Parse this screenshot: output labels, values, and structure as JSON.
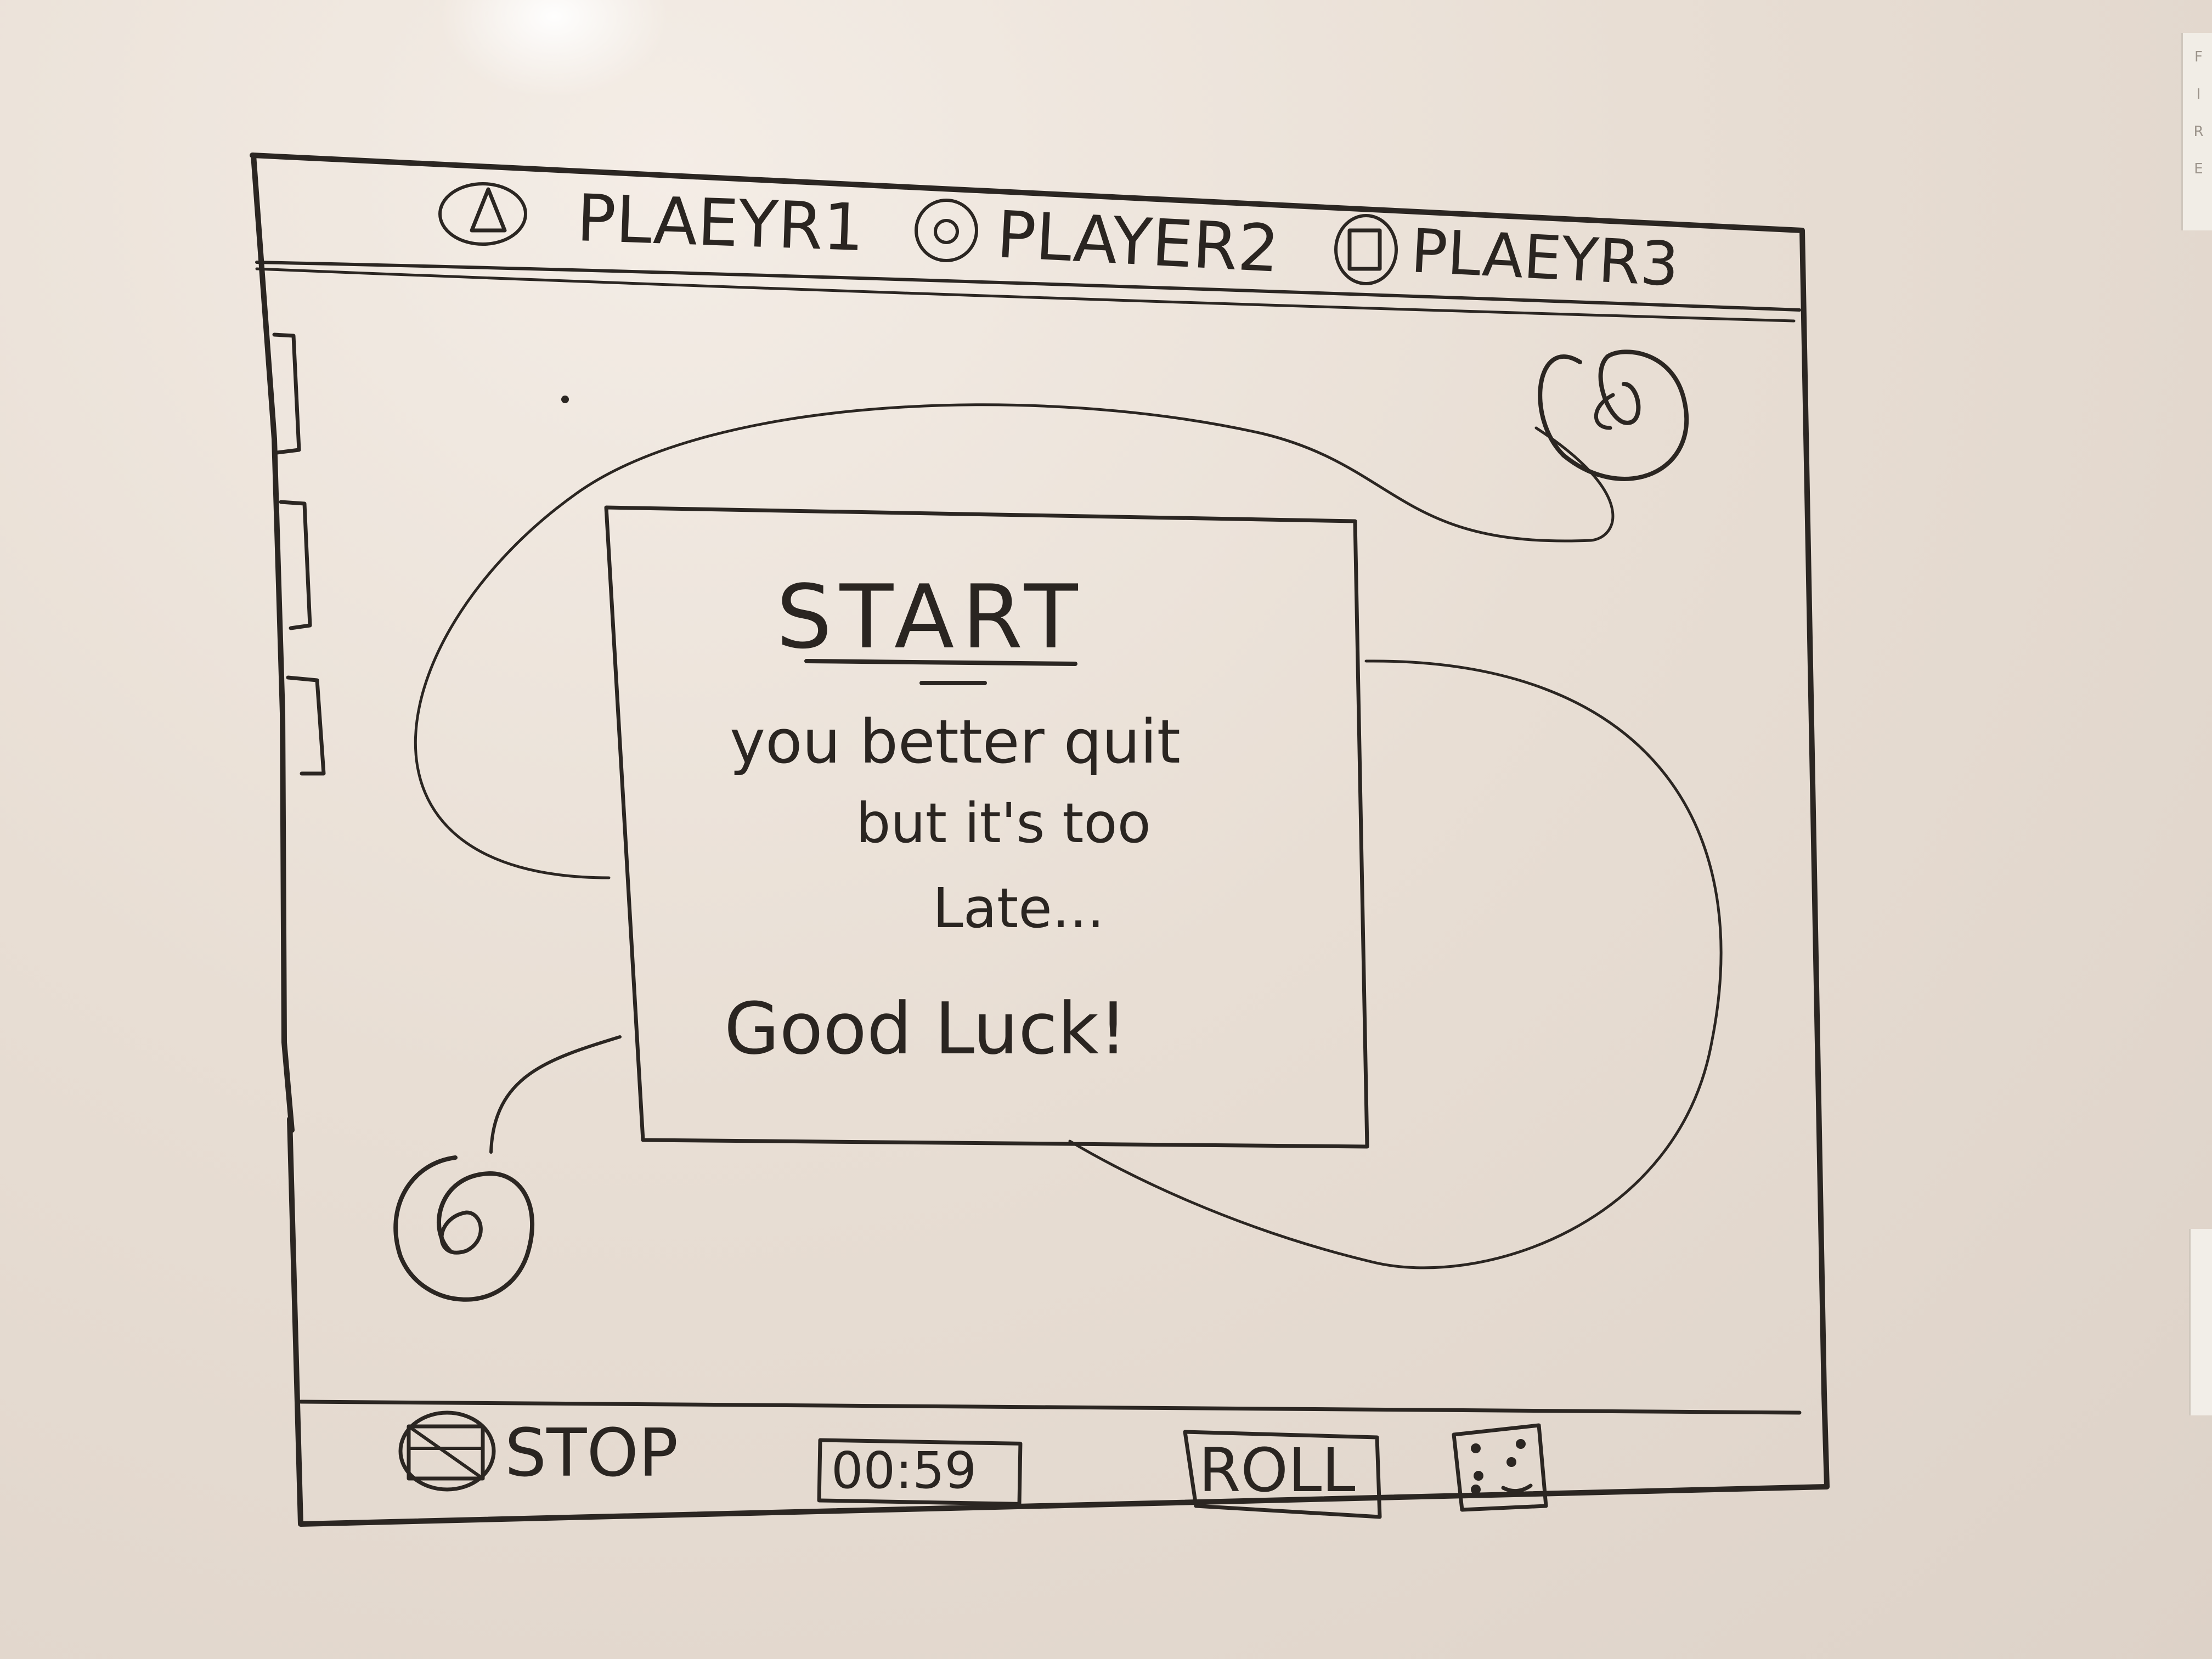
{
  "players": [
    {
      "name": "PLAEYR1",
      "icon": "triangle-icon"
    },
    {
      "name": "PLAYER2",
      "icon": "circle-icon"
    },
    {
      "name": "PLAEYR3",
      "icon": "square-icon"
    }
  ],
  "dialog": {
    "title": "START",
    "line1": "you better quit",
    "line2": "but it's too",
    "line3": "Late...",
    "greeting": "Good Luck!"
  },
  "footer": {
    "stop_label": "STOP",
    "stop_icon": "stop-icon",
    "timer": "00:59",
    "roll_label": "ROLL",
    "dice_icon": "dice-icon"
  },
  "wall": {
    "label_letters": [
      "F",
      "I",
      "R",
      "E"
    ]
  },
  "colors": {
    "ink": "#2b2622",
    "board": "#e8ded4"
  }
}
